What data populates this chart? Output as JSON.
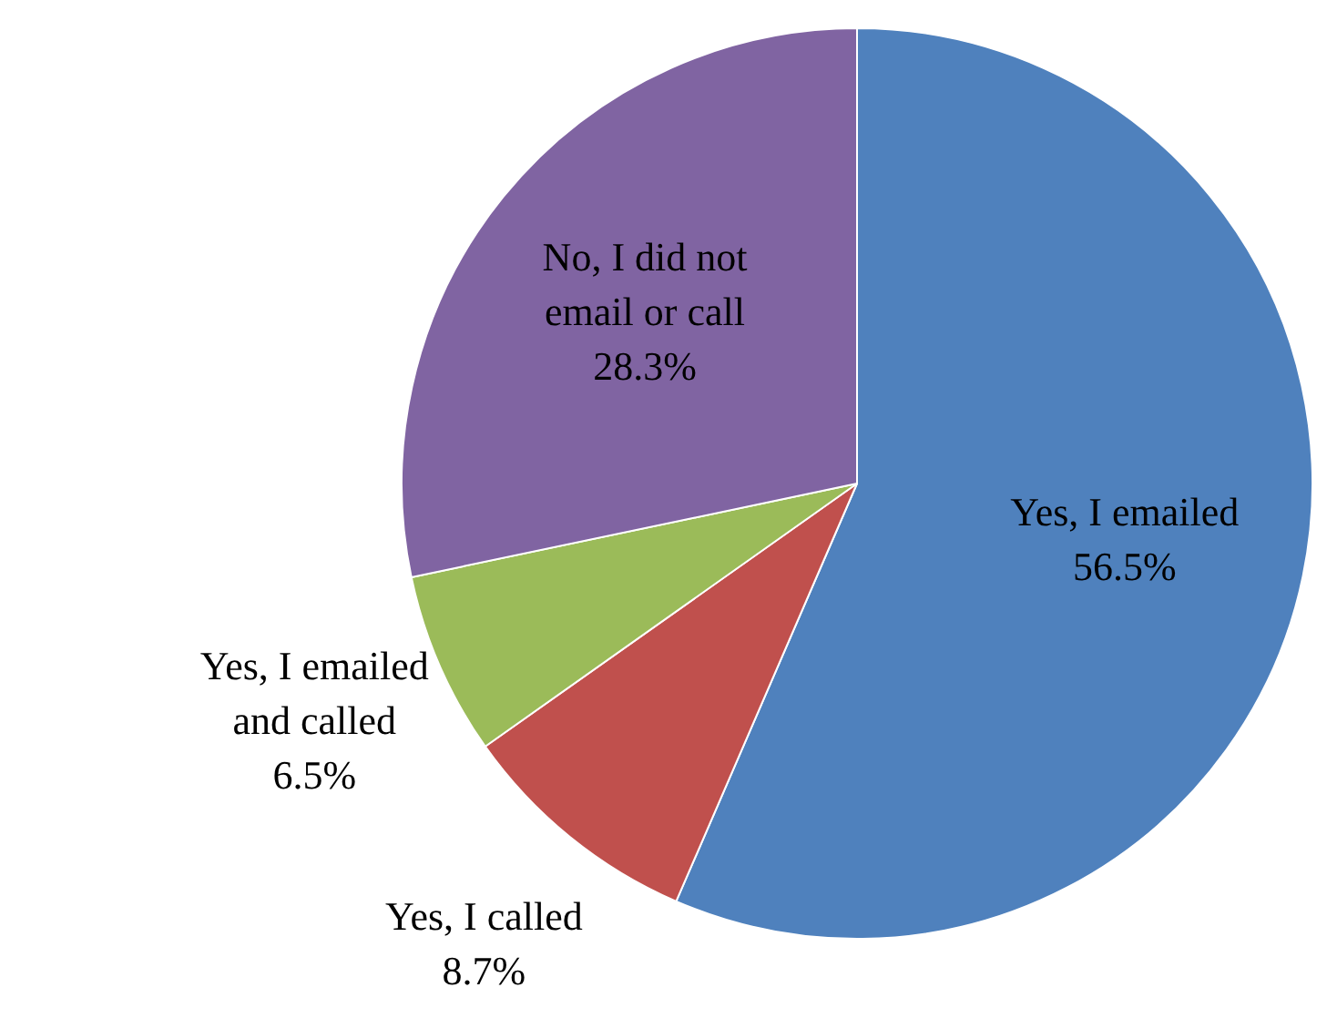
{
  "chart_data": {
    "type": "pie",
    "categories": [
      "Yes, I emailed",
      "Yes, I called",
      "Yes, I emailed and called",
      "No, I did not email or call"
    ],
    "values": [
      56.5,
      8.7,
      6.5,
      28.3
    ],
    "colors": [
      "#4f81bd",
      "#c0504d",
      "#9bbb59",
      "#8064a2"
    ],
    "value_labels": [
      "56.5%",
      "8.7%",
      "6.5%",
      "28.3%"
    ],
    "legend": false
  }
}
